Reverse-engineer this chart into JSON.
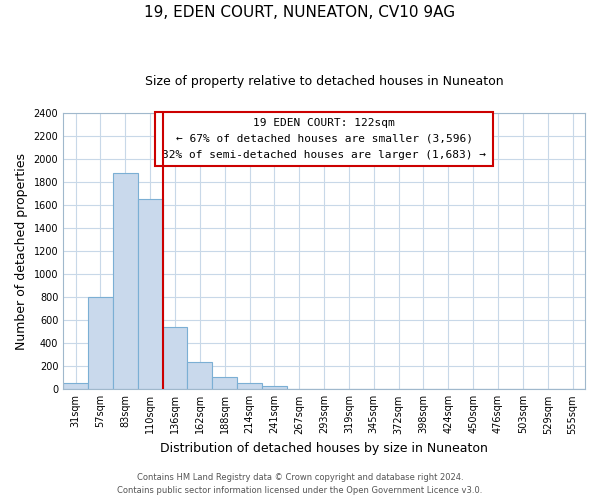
{
  "title": "19, EDEN COURT, NUNEATON, CV10 9AG",
  "subtitle": "Size of property relative to detached houses in Nuneaton",
  "xlabel": "Distribution of detached houses by size in Nuneaton",
  "ylabel": "Number of detached properties",
  "bar_labels": [
    "31sqm",
    "57sqm",
    "83sqm",
    "110sqm",
    "136sqm",
    "162sqm",
    "188sqm",
    "214sqm",
    "241sqm",
    "267sqm",
    "293sqm",
    "319sqm",
    "345sqm",
    "372sqm",
    "398sqm",
    "424sqm",
    "450sqm",
    "476sqm",
    "503sqm",
    "529sqm",
    "555sqm"
  ],
  "bar_values": [
    55,
    800,
    1880,
    1650,
    540,
    235,
    110,
    55,
    30,
    0,
    0,
    0,
    0,
    0,
    0,
    0,
    0,
    0,
    0,
    0,
    0
  ],
  "bar_color": "#c9d9ec",
  "bar_edge_color": "#7bafd4",
  "vline_color": "#cc0000",
  "ylim": [
    0,
    2400
  ],
  "yticks": [
    0,
    200,
    400,
    600,
    800,
    1000,
    1200,
    1400,
    1600,
    1800,
    2000,
    2200,
    2400
  ],
  "annotation_title": "19 EDEN COURT: 122sqm",
  "annotation_line1": "← 67% of detached houses are smaller (3,596)",
  "annotation_line2": "32% of semi-detached houses are larger (1,683) →",
  "footer_line1": "Contains HM Land Registry data © Crown copyright and database right 2024.",
  "footer_line2": "Contains public sector information licensed under the Open Government Licence v3.0.",
  "background_color": "#ffffff",
  "grid_color": "#c8d8e8",
  "title_fontsize": 11,
  "subtitle_fontsize": 9,
  "axis_label_fontsize": 9,
  "tick_fontsize": 7,
  "footer_fontsize": 6,
  "vline_bin_index": 3
}
